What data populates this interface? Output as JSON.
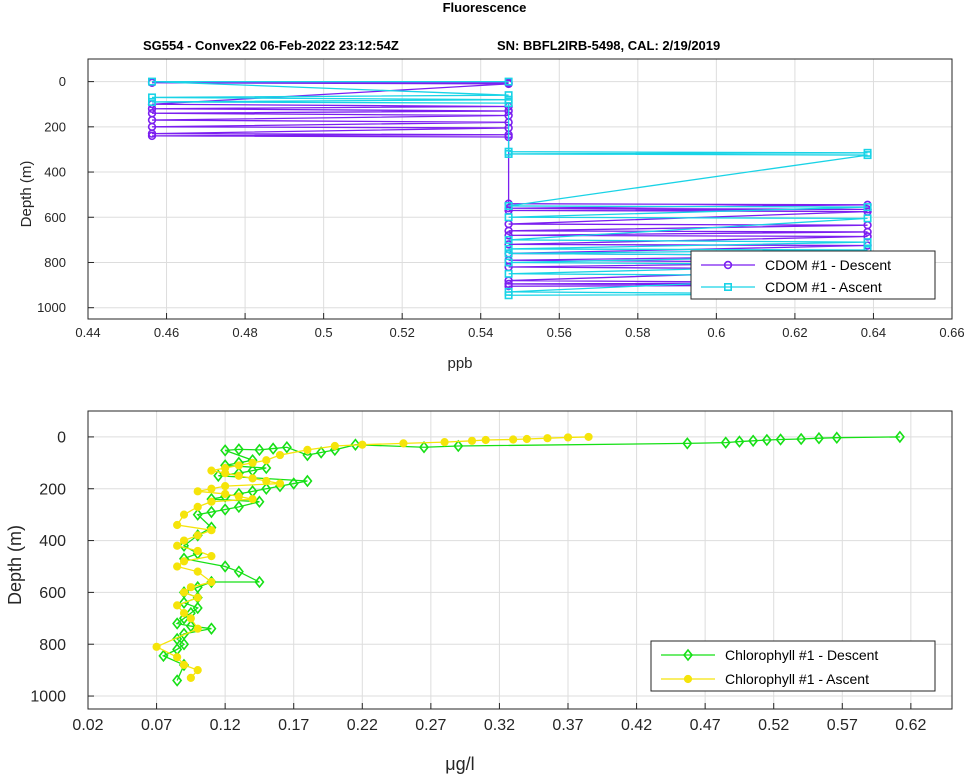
{
  "figure": {
    "title": "Fluorescence",
    "subtitle_left": "SG554 - Convex22 06-Feb-2022 23:12:54Z",
    "subtitle_right": "SN: BBFL2IRB-5498, CAL: 2/19/2019"
  },
  "chart_data": [
    {
      "type": "line",
      "xlabel": "ppb",
      "ylabel": "Depth (m)",
      "xlim": [
        0.44,
        0.66
      ],
      "ylim": [
        0,
        1000
      ],
      "y_reversed": true,
      "xticks": [
        "0.44",
        "0.46",
        "0.48",
        "0.5",
        "0.52",
        "0.54",
        "0.56",
        "0.58",
        "0.6",
        "0.62",
        "0.64",
        "0.66"
      ],
      "yticks": [
        "0",
        "200",
        "400",
        "600",
        "800",
        "1000"
      ],
      "legend": "bottom-right",
      "series": [
        {
          "name": "CDOM #1 - Descent",
          "color": "#7b1ff0",
          "marker": "circle",
          "x": [
            0.5471,
            0.4563,
            0.5471,
            0.4563,
            0.5471,
            0.4563,
            0.5471,
            0.4563,
            0.5471,
            0.4563,
            0.5471,
            0.4563,
            0.5471,
            0.4563,
            0.5471,
            0.4563,
            0.5471,
            0.5471,
            0.6385,
            0.5471,
            0.6385,
            0.5471,
            0.6385,
            0.5471,
            0.6385,
            0.5471,
            0.6385,
            0.5471,
            0.6385,
            0.5471,
            0.6385,
            0.5471,
            0.6385,
            0.5471,
            0.6385,
            0.5471,
            0.6385,
            0.5471,
            0.6385,
            0.5471,
            0.6385,
            0.5471
          ],
          "y": [
            5,
            5,
            10,
            100,
            110,
            120,
            130,
            140,
            150,
            170,
            180,
            200,
            205,
            230,
            235,
            240,
            245,
            540,
            545,
            560,
            565,
            570,
            575,
            630,
            635,
            660,
            665,
            680,
            685,
            720,
            725,
            760,
            770,
            790,
            800,
            820,
            830,
            880,
            890,
            895,
            900,
            905
          ]
        },
        {
          "name": "CDOM #1 - Ascent",
          "color": "#19d3e6",
          "marker": "square",
          "x": [
            0.5471,
            0.4563,
            0.5471,
            0.4563,
            0.5471,
            0.4563,
            0.5471,
            0.5471,
            0.6385,
            0.5471,
            0.6385,
            0.5471,
            0.6385,
            0.5471,
            0.6385,
            0.5471,
            0.6385,
            0.5471,
            0.6385,
            0.5471,
            0.6385,
            0.5471,
            0.6385,
            0.5471,
            0.6385,
            0.5471,
            0.6385,
            0.5471
          ],
          "y": [
            0,
            0,
            60,
            70,
            80,
            90,
            95,
            310,
            315,
            320,
            325,
            550,
            555,
            600,
            605,
            700,
            710,
            740,
            745,
            760,
            770,
            800,
            810,
            850,
            860,
            930,
            940,
            945
          ]
        }
      ]
    },
    {
      "type": "line",
      "xlabel": "μg/l",
      "ylabel": "Depth (m)",
      "xlim": [
        0.02,
        0.65
      ],
      "ylim": [
        0,
        1000
      ],
      "y_reversed": true,
      "xticks": [
        "0.02",
        "0.07",
        "0.12",
        "0.17",
        "0.22",
        "0.27",
        "0.32",
        "0.37",
        "0.42",
        "0.47",
        "0.52",
        "0.57",
        "0.62"
      ],
      "yticks": [
        "0",
        "200",
        "400",
        "600",
        "800",
        "1000"
      ],
      "legend": "bottom-right",
      "series": [
        {
          "name": "Chlorophyll #1 - Descent",
          "color": "#16e016",
          "marker": "diamond",
          "x": [
            0.612,
            0.566,
            0.553,
            0.54,
            0.525,
            0.515,
            0.505,
            0.495,
            0.485,
            0.457,
            0.29,
            0.265,
            0.215,
            0.2,
            0.19,
            0.18,
            0.165,
            0.155,
            0.145,
            0.13,
            0.12,
            0.14,
            0.13,
            0.12,
            0.15,
            0.14,
            0.13,
            0.115,
            0.18,
            0.17,
            0.16,
            0.15,
            0.14,
            0.13,
            0.12,
            0.11,
            0.145,
            0.13,
            0.12,
            0.11,
            0.1,
            0.11,
            0.1,
            0.09,
            0.1,
            0.09,
            0.12,
            0.13,
            0.145,
            0.11,
            0.1,
            0.09,
            0.1,
            0.09,
            0.1,
            0.095,
            0.09,
            0.085,
            0.095,
            0.11,
            0.09,
            0.085,
            0.09,
            0.085,
            0.075,
            0.09,
            0.085
          ],
          "y": [
            0,
            3,
            5,
            8,
            10,
            12,
            15,
            18,
            22,
            25,
            35,
            40,
            30,
            50,
            60,
            70,
            40,
            45,
            50,
            48,
            52,
            90,
            100,
            110,
            120,
            130,
            140,
            150,
            170,
            180,
            190,
            200,
            210,
            220,
            230,
            240,
            250,
            270,
            280,
            290,
            300,
            350,
            380,
            420,
            450,
            470,
            500,
            520,
            560,
            560,
            580,
            600,
            620,
            640,
            660,
            680,
            700,
            720,
            730,
            740,
            760,
            780,
            800,
            820,
            845,
            880,
            940
          ]
        },
        {
          "name": "Chlorophyll #1 - Ascent",
          "color": "#f5e40a",
          "marker": "dot",
          "x": [
            0.385,
            0.37,
            0.355,
            0.34,
            0.33,
            0.31,
            0.3,
            0.28,
            0.25,
            0.22,
            0.2,
            0.18,
            0.16,
            0.15,
            0.14,
            0.13,
            0.12,
            0.11,
            0.12,
            0.13,
            0.14,
            0.15,
            0.16,
            0.12,
            0.11,
            0.1,
            0.12,
            0.13,
            0.14,
            0.11,
            0.1,
            0.09,
            0.085,
            0.11,
            0.1,
            0.09,
            0.085,
            0.1,
            0.11,
            0.09,
            0.085,
            0.1,
            0.11,
            0.095,
            0.09,
            0.1,
            0.085,
            0.09,
            0.095,
            0.1,
            0.07,
            0.085,
            0.09,
            0.1,
            0.095
          ],
          "y": [
            0,
            2,
            5,
            8,
            10,
            12,
            15,
            20,
            25,
            30,
            35,
            50,
            70,
            90,
            100,
            110,
            120,
            130,
            140,
            150,
            160,
            170,
            180,
            190,
            200,
            210,
            220,
            230,
            240,
            250,
            270,
            300,
            340,
            360,
            380,
            400,
            420,
            440,
            460,
            480,
            500,
            520,
            560,
            580,
            600,
            620,
            650,
            680,
            700,
            740,
            810,
            850,
            880,
            900,
            930
          ]
        }
      ]
    }
  ]
}
